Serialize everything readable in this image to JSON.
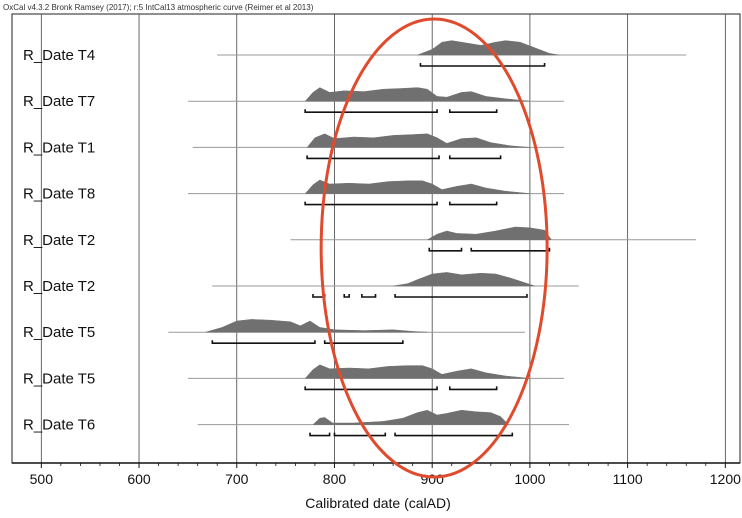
{
  "chart_data": {
    "type": "area",
    "header": "OxCal v4.3.2 Bronk Ramsey (2017); r:5 IntCal13 atmospheric curve (Reimer et al 2013)",
    "xlabel": "Calibrated date (calAD)",
    "xlim": [
      470,
      1215
    ],
    "xticks": [
      500,
      600,
      700,
      800,
      900,
      1000,
      1100,
      1200
    ],
    "grid": true,
    "fill_color": "#707070",
    "line_color": "#999999",
    "range_color": "#111111",
    "highlight": {
      "shape": "ellipse",
      "color": "#e04b2e",
      "center_x": 902
    },
    "series": [
      {
        "name": "R_Date T4",
        "extent": [
          680,
          1160
        ],
        "density": [
          [
            885,
            0
          ],
          [
            900,
            0.35
          ],
          [
            910,
            0.8
          ],
          [
            920,
            0.9
          ],
          [
            935,
            0.75
          ],
          [
            950,
            0.6
          ],
          [
            965,
            0.8
          ],
          [
            975,
            0.9
          ],
          [
            990,
            0.8
          ],
          [
            1005,
            0.45
          ],
          [
            1020,
            0.1
          ],
          [
            1030,
            0
          ]
        ],
        "ranges": [
          [
            888,
            1015
          ]
        ]
      },
      {
        "name": "R_Date T7",
        "extent": [
          650,
          1035
        ],
        "density": [
          [
            770,
            0
          ],
          [
            778,
            0.55
          ],
          [
            785,
            0.85
          ],
          [
            795,
            0.55
          ],
          [
            810,
            0.65
          ],
          [
            830,
            0.6
          ],
          [
            850,
            0.75
          ],
          [
            870,
            0.8
          ],
          [
            885,
            0.85
          ],
          [
            895,
            0.75
          ],
          [
            905,
            0.3
          ],
          [
            915,
            0.25
          ],
          [
            930,
            0.55
          ],
          [
            940,
            0.6
          ],
          [
            955,
            0.3
          ],
          [
            975,
            0.15
          ],
          [
            1000,
            0
          ]
        ],
        "ranges": [
          [
            770,
            905
          ],
          [
            918,
            966
          ]
        ]
      },
      {
        "name": "R_Date T1",
        "extent": [
          655,
          1035
        ],
        "density": [
          [
            772,
            0
          ],
          [
            780,
            0.6
          ],
          [
            790,
            0.85
          ],
          [
            800,
            0.55
          ],
          [
            820,
            0.65
          ],
          [
            840,
            0.6
          ],
          [
            860,
            0.75
          ],
          [
            880,
            0.8
          ],
          [
            895,
            0.85
          ],
          [
            905,
            0.6
          ],
          [
            915,
            0.25
          ],
          [
            930,
            0.55
          ],
          [
            945,
            0.6
          ],
          [
            960,
            0.3
          ],
          [
            980,
            0.1
          ],
          [
            1000,
            0
          ]
        ],
        "ranges": [
          [
            772,
            907
          ],
          [
            918,
            970
          ]
        ]
      },
      {
        "name": "R_Date T8",
        "extent": [
          650,
          1035
        ],
        "density": [
          [
            770,
            0
          ],
          [
            778,
            0.55
          ],
          [
            785,
            0.85
          ],
          [
            795,
            0.6
          ],
          [
            815,
            0.65
          ],
          [
            835,
            0.6
          ],
          [
            855,
            0.75
          ],
          [
            875,
            0.8
          ],
          [
            890,
            0.8
          ],
          [
            900,
            0.6
          ],
          [
            910,
            0.25
          ],
          [
            925,
            0.45
          ],
          [
            940,
            0.6
          ],
          [
            955,
            0.35
          ],
          [
            975,
            0.15
          ],
          [
            1000,
            0
          ]
        ],
        "ranges": [
          [
            770,
            905
          ],
          [
            918,
            966
          ]
        ]
      },
      {
        "name": "R_Date T2",
        "extent": [
          755,
          1170
        ],
        "density": [
          [
            895,
            0
          ],
          [
            905,
            0.35
          ],
          [
            915,
            0.55
          ],
          [
            925,
            0.4
          ],
          [
            945,
            0.35
          ],
          [
            965,
            0.55
          ],
          [
            985,
            0.8
          ],
          [
            1000,
            0.75
          ],
          [
            1015,
            0.6
          ],
          [
            1022,
            0
          ]
        ],
        "ranges": [
          [
            897,
            930
          ],
          [
            940,
            1020
          ]
        ]
      },
      {
        "name": "R_Date T2",
        "extent": [
          675,
          1050
        ],
        "density": [
          [
            860,
            0
          ],
          [
            875,
            0.15
          ],
          [
            885,
            0.4
          ],
          [
            900,
            0.75
          ],
          [
            915,
            0.85
          ],
          [
            930,
            0.7
          ],
          [
            950,
            0.8
          ],
          [
            965,
            0.75
          ],
          [
            980,
            0.5
          ],
          [
            995,
            0.2
          ],
          [
            1005,
            0
          ]
        ],
        "ranges": [
          [
            778,
            790
          ],
          [
            810,
            815
          ],
          [
            828,
            842
          ],
          [
            862,
            997
          ]
        ]
      },
      {
        "name": "R_Date T5",
        "extent": [
          630,
          995
        ],
        "density": [
          [
            668,
            0
          ],
          [
            685,
            0.3
          ],
          [
            700,
            0.7
          ],
          [
            715,
            0.8
          ],
          [
            735,
            0.75
          ],
          [
            755,
            0.65
          ],
          [
            765,
            0.4
          ],
          [
            775,
            0.7
          ],
          [
            785,
            0.3
          ],
          [
            800,
            0.15
          ],
          [
            830,
            0.1
          ],
          [
            860,
            0.15
          ],
          [
            880,
            0.05
          ],
          [
            895,
            0
          ]
        ],
        "ranges": [
          [
            675,
            780
          ],
          [
            790,
            870
          ]
        ]
      },
      {
        "name": "R_Date T5",
        "extent": [
          650,
          1035
        ],
        "density": [
          [
            770,
            0
          ],
          [
            778,
            0.55
          ],
          [
            785,
            0.85
          ],
          [
            795,
            0.6
          ],
          [
            815,
            0.65
          ],
          [
            835,
            0.6
          ],
          [
            855,
            0.75
          ],
          [
            875,
            0.8
          ],
          [
            890,
            0.8
          ],
          [
            900,
            0.6
          ],
          [
            910,
            0.25
          ],
          [
            925,
            0.45
          ],
          [
            940,
            0.6
          ],
          [
            955,
            0.35
          ],
          [
            975,
            0.15
          ],
          [
            1000,
            0
          ]
        ],
        "ranges": [
          [
            770,
            905
          ],
          [
            918,
            966
          ]
        ]
      },
      {
        "name": "R_Date T6",
        "extent": [
          660,
          1040
        ],
        "density": [
          [
            778,
            0
          ],
          [
            785,
            0.4
          ],
          [
            790,
            0.45
          ],
          [
            798,
            0.1
          ],
          [
            820,
            0.1
          ],
          [
            850,
            0.2
          ],
          [
            870,
            0.4
          ],
          [
            885,
            0.75
          ],
          [
            895,
            0.9
          ],
          [
            905,
            0.6
          ],
          [
            915,
            0.7
          ],
          [
            930,
            0.9
          ],
          [
            945,
            0.8
          ],
          [
            960,
            0.75
          ],
          [
            970,
            0.5
          ],
          [
            978,
            0
          ]
        ],
        "ranges": [
          [
            775,
            795
          ],
          [
            800,
            852
          ],
          [
            862,
            982
          ]
        ]
      }
    ]
  }
}
